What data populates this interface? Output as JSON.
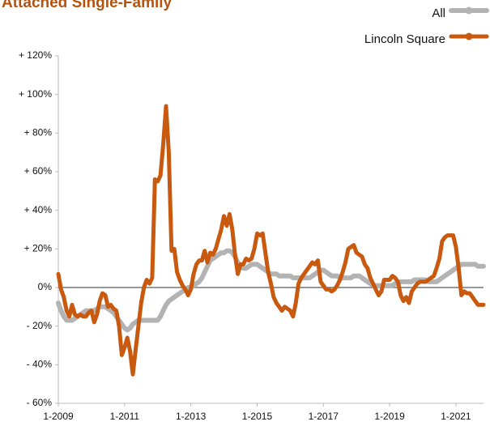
{
  "chart_data": {
    "type": "line",
    "title": "Attached Single-Family",
    "categories": [
      "1-2009",
      null,
      null,
      null,
      null,
      null,
      null,
      null,
      null,
      null,
      null,
      null,
      null,
      null,
      null,
      null,
      null,
      null,
      null,
      null,
      null,
      null,
      null,
      null,
      "1-2011",
      null,
      null,
      null,
      null,
      null,
      null,
      null,
      null,
      null,
      null,
      null,
      null,
      null,
      null,
      null,
      null,
      null,
      null,
      null,
      null,
      null,
      null,
      null,
      "1-2013",
      null,
      null,
      null,
      null,
      null,
      null,
      null,
      null,
      null,
      null,
      null,
      null,
      null,
      null,
      null,
      null,
      null,
      null,
      null,
      null,
      null,
      null,
      null,
      "1-2015",
      null,
      null,
      null,
      null,
      null,
      null,
      null,
      null,
      null,
      null,
      null,
      null,
      null,
      null,
      null,
      null,
      null,
      null,
      null,
      null,
      null,
      null,
      null,
      "1-2017",
      null,
      null,
      null,
      null,
      null,
      null,
      null,
      null,
      null,
      null,
      null,
      null,
      null,
      null,
      null,
      null,
      null,
      null,
      null,
      null,
      null,
      null,
      null,
      "1-2019",
      null,
      null,
      null,
      null,
      null,
      null,
      null,
      null,
      null,
      null,
      null,
      null,
      null,
      null,
      null,
      null,
      null,
      null,
      null,
      null,
      null,
      null,
      null,
      "1-2021",
      null,
      null,
      null,
      null,
      null,
      null,
      null,
      null,
      null,
      null
    ],
    "series": [
      {
        "name": "All",
        "color": "#b3b3b3",
        "values": [
          -8,
          -12,
          -15,
          -17,
          -17,
          -17,
          -16,
          -15,
          -14,
          -13,
          -12,
          -12,
          -12,
          -12,
          -11,
          -10,
          -10,
          -10,
          -11,
          -12,
          -13,
          -15,
          -17,
          -19,
          -21,
          -22,
          -21,
          -19,
          -18,
          -17,
          -17,
          -17,
          -17,
          -17,
          -17,
          -17,
          -17,
          -15,
          -12,
          -9,
          -7,
          -6,
          -5,
          -4,
          -3,
          -2,
          -1,
          0,
          0,
          1,
          2,
          3,
          5,
          8,
          11,
          14,
          15,
          16,
          17,
          18,
          18,
          19,
          19,
          18,
          16,
          13,
          11,
          10,
          10,
          11,
          12,
          12,
          12,
          11,
          10,
          9,
          8,
          7,
          7,
          7,
          6,
          6,
          6,
          6,
          6,
          5,
          5,
          5,
          5,
          5,
          5,
          5,
          6,
          7,
          8,
          9,
          9,
          8,
          7,
          6,
          6,
          6,
          5,
          5,
          5,
          5,
          5,
          6,
          6,
          6,
          5,
          4,
          3,
          2,
          1,
          1,
          1,
          1,
          1,
          1,
          1,
          1,
          2,
          2,
          3,
          3,
          3,
          3,
          3,
          4,
          4,
          4,
          4,
          4,
          3,
          3,
          3,
          3,
          4,
          5,
          6,
          7,
          8,
          9,
          10,
          11,
          12,
          12,
          12,
          12,
          12,
          12,
          11,
          11,
          11
        ]
      },
      {
        "name": "Lincoln Square",
        "color": "#c8590f",
        "values": [
          7,
          -1,
          -5,
          -12,
          -15,
          -9,
          -14,
          -15,
          -14,
          -15,
          -15,
          -13,
          -12,
          -18,
          -14,
          -7,
          -3,
          -4,
          -10,
          -9,
          -11,
          -12,
          -20,
          -35,
          -31,
          -26,
          -33,
          -45,
          -32,
          -20,
          -8,
          0,
          4,
          2,
          5,
          56,
          55,
          58,
          74,
          94,
          70,
          19,
          20,
          8,
          4,
          1,
          -1,
          -4,
          -1,
          7,
          12,
          14,
          14,
          19,
          13,
          18,
          17,
          20,
          25,
          30,
          37,
          32,
          38,
          30,
          17,
          7,
          12,
          12,
          15,
          14,
          15,
          20,
          28,
          27,
          28,
          18,
          8,
          2,
          -5,
          -8,
          -10,
          -12,
          -10,
          -11,
          -12,
          -15,
          -8,
          2,
          5,
          7,
          9,
          11,
          13,
          12,
          14,
          3,
          1,
          -1,
          -1,
          -2,
          -1,
          1,
          4,
          8,
          13,
          20,
          21,
          22,
          18,
          17,
          16,
          12,
          10,
          5,
          2,
          -1,
          -4,
          -2,
          4,
          4,
          4,
          6,
          5,
          3,
          -4,
          -7,
          -5,
          -8,
          -2,
          0,
          2,
          3,
          3,
          3,
          4,
          5,
          6,
          10,
          15,
          24,
          26,
          27,
          27,
          27,
          21,
          10,
          -4,
          -2,
          -3,
          -3,
          -5,
          -7,
          -9,
          -9,
          -9
        ]
      }
    ],
    "ylim": [
      -60,
      120
    ],
    "yticks": [
      {
        "value": -60,
        "label": "- 60%"
      },
      {
        "value": -40,
        "label": "- 40%"
      },
      {
        "value": -20,
        "label": "- 20%"
      },
      {
        "value": 0,
        "label": "0%"
      },
      {
        "value": 20,
        "label": "+ 20%"
      },
      {
        "value": 40,
        "label": "+ 40%"
      },
      {
        "value": 60,
        "label": "+ 60%"
      },
      {
        "value": 80,
        "label": "+ 80%"
      },
      {
        "value": 100,
        "label": "+ 100%"
      },
      {
        "value": 120,
        "label": "+ 120%"
      }
    ],
    "legend": "top-right"
  }
}
